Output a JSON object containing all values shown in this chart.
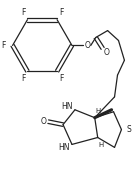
{
  "bg_color": "#ffffff",
  "line_color": "#222222",
  "line_width": 0.9,
  "font_size": 5.5,
  "figsize": [
    1.37,
    1.76
  ],
  "dpi": 100,
  "xlim": [
    0,
    137
  ],
  "ylim": [
    0,
    176
  ]
}
